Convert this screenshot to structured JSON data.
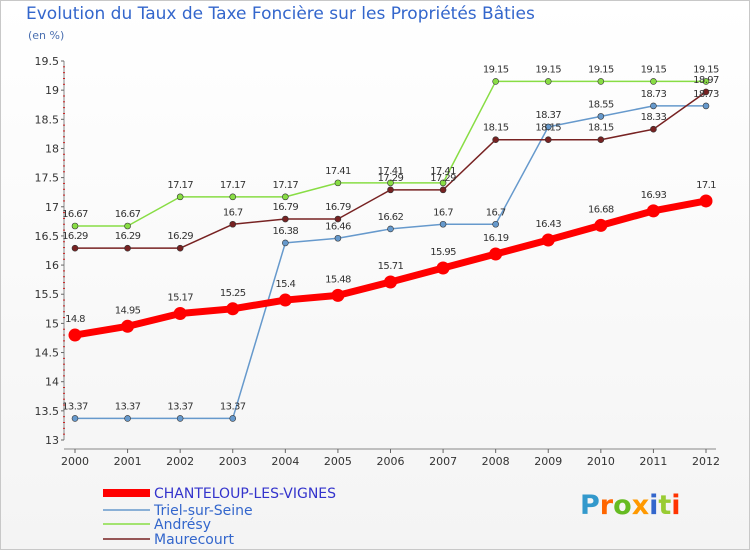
{
  "chart_data": {
    "type": "line",
    "title": "Evolution du Taux de Taxe Foncière sur les Propriétés Bâties",
    "subtitle": "(en %)",
    "x": [
      "2000",
      "2001",
      "2002",
      "2003",
      "2004",
      "2005",
      "2006",
      "2007",
      "2008",
      "2009",
      "2010",
      "2011",
      "2012"
    ],
    "ylim": [
      13,
      19.5
    ],
    "yticks": [
      "13",
      "13.5",
      "14",
      "14.5",
      "15",
      "15.5",
      "16",
      "16.5",
      "17",
      "17.5",
      "18",
      "18.5",
      "19",
      "19.5"
    ],
    "grid": false,
    "legend_position": "bottom-left",
    "series": [
      {
        "name": "CHANTELOUP-LES-VIGNES",
        "color": "#ff0000",
        "values": [
          14.8,
          14.95,
          15.17,
          15.25,
          15.4,
          15.48,
          15.71,
          15.95,
          16.19,
          16.43,
          16.68,
          16.93,
          17.1
        ],
        "labels": [
          "14.8",
          "14.95",
          "15.17",
          "15.25",
          "15.4",
          "15.48",
          "15.71",
          "15.95",
          "16.19",
          "16.43",
          "16.68",
          "16.93",
          "17.1"
        ]
      },
      {
        "name": "Triel-sur-Seine",
        "color": "#6699cc",
        "values": [
          13.37,
          13.37,
          13.37,
          13.37,
          16.38,
          16.46,
          16.62,
          16.7,
          16.7,
          18.37,
          18.55,
          18.73,
          18.73
        ],
        "labels": [
          "13.37",
          "13.37",
          "13.37",
          "13.37",
          "16.38",
          "16.46",
          "16.62",
          "16.7",
          "16.7",
          "18.37",
          "18.55",
          "18.73",
          "18.73"
        ]
      },
      {
        "name": "Andrésy",
        "color": "#88dd44",
        "values": [
          16.67,
          16.67,
          17.17,
          17.17,
          17.17,
          17.41,
          17.41,
          17.41,
          19.15,
          19.15,
          19.15,
          19.15,
          19.15
        ],
        "labels": [
          "16.67",
          "16.67",
          "17.17",
          "17.17",
          "17.17",
          "17.41",
          "17.41",
          "17.41",
          "19.15",
          "19.15",
          "19.15",
          "19.15",
          "19.15"
        ]
      },
      {
        "name": "Maurecourt",
        "color": "#772222",
        "values": [
          16.29,
          16.29,
          16.29,
          16.7,
          16.79,
          16.79,
          17.29,
          17.29,
          18.15,
          18.15,
          18.15,
          18.33,
          18.97
        ],
        "labels": [
          "16.29",
          "16.29",
          "16.29",
          "16.7",
          "16.79",
          "16.79",
          "17.29",
          "17.29",
          "18.15",
          "18.15",
          "18.15",
          "18.33",
          "18.97"
        ]
      }
    ]
  },
  "logo": {
    "text": "Proxiti"
  }
}
